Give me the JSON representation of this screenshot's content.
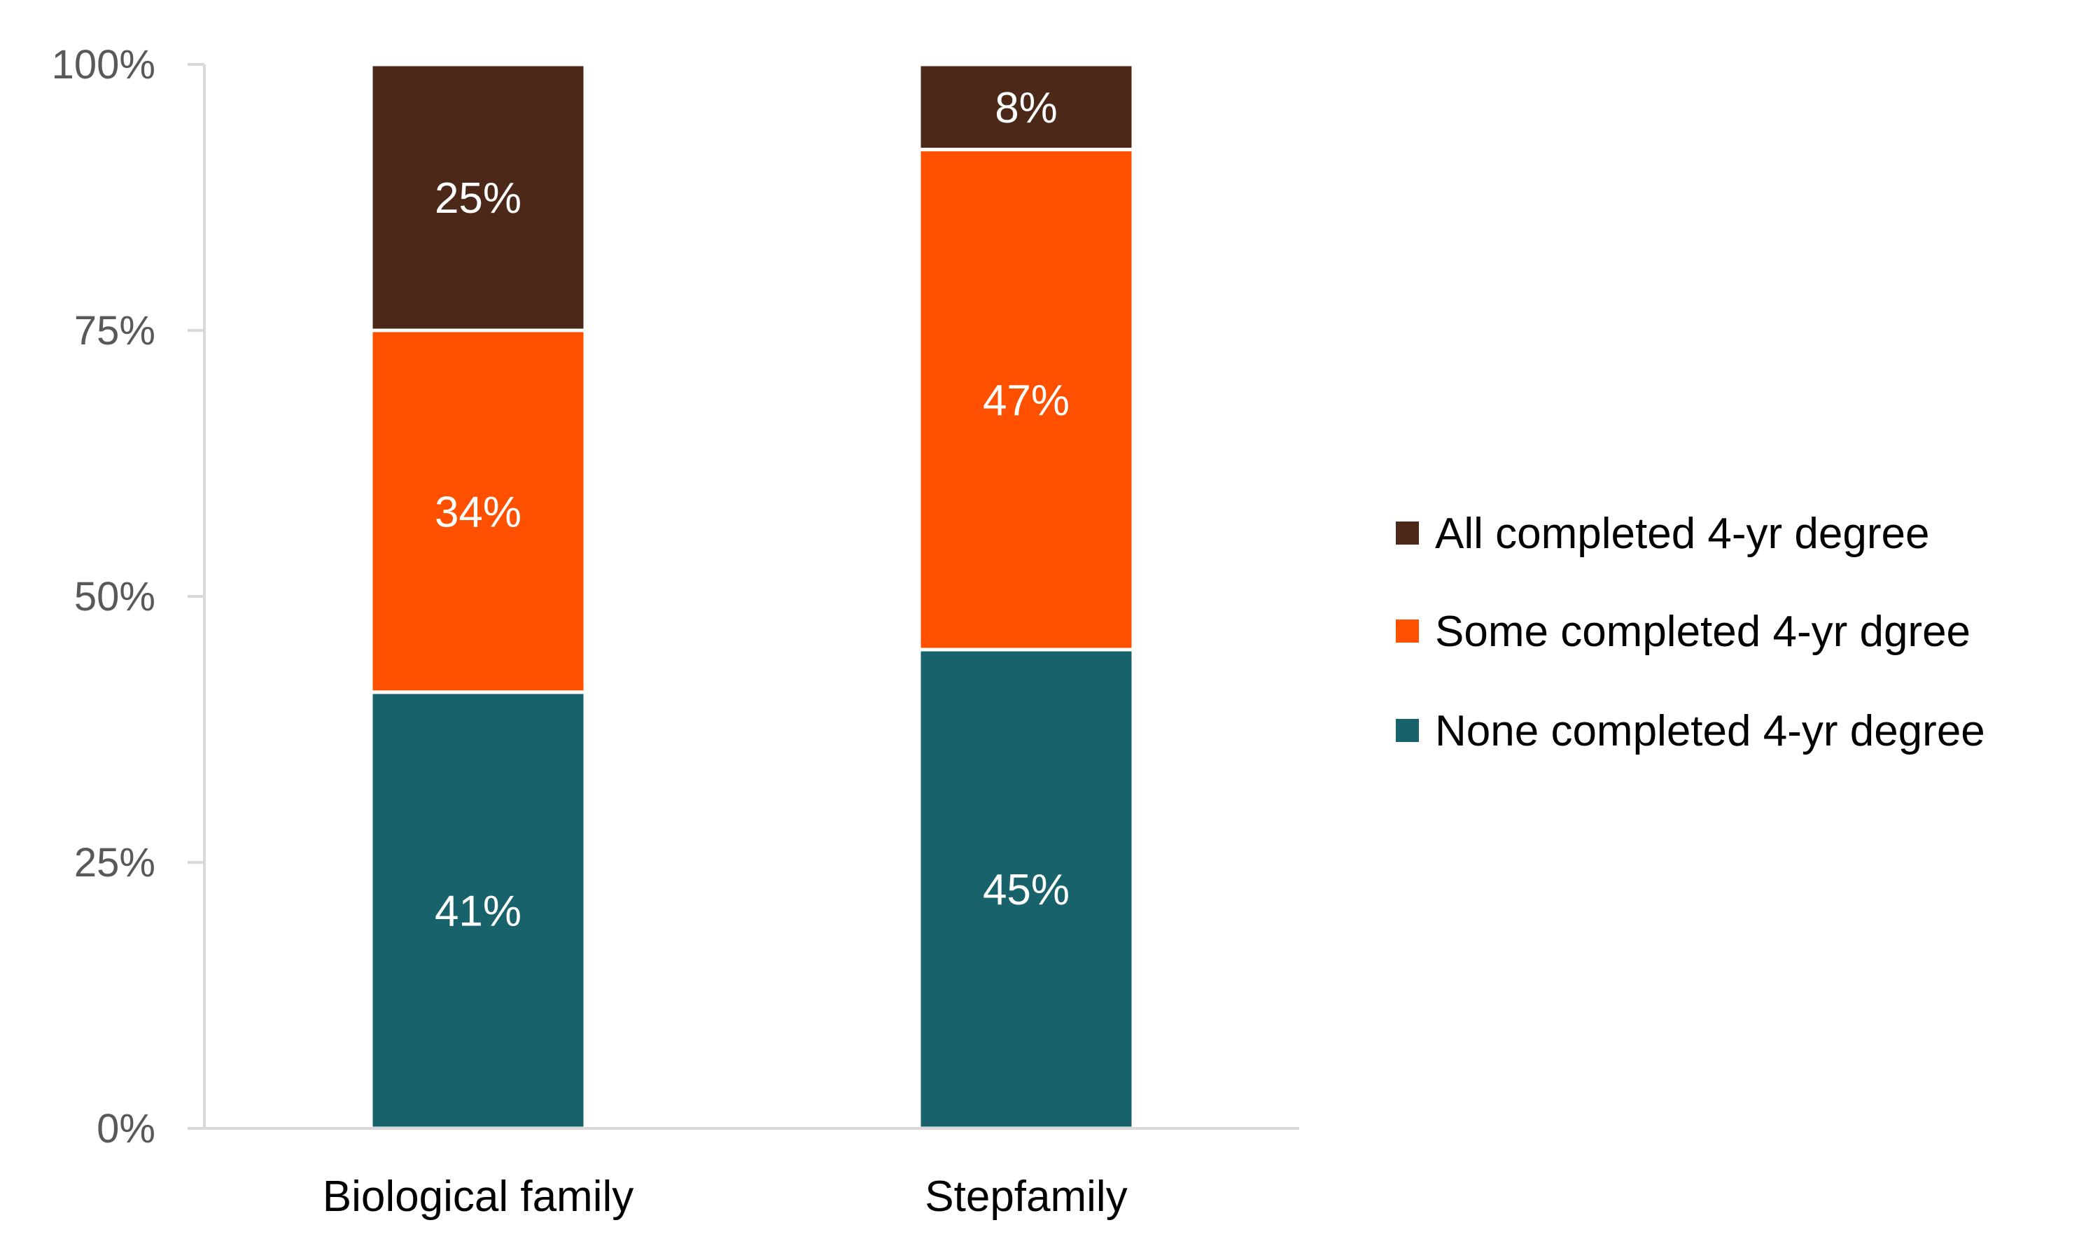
{
  "chart_data": {
    "type": "bar",
    "stacked": true,
    "title": "",
    "xlabel": "",
    "ylabel": "",
    "ylim": [
      0,
      100
    ],
    "yticks": [
      "0%",
      "25%",
      "50%",
      "75%",
      "100%"
    ],
    "ytick_values": [
      0,
      25,
      50,
      75,
      100
    ],
    "categories": [
      "Biological family",
      "Stepfamily"
    ],
    "series": [
      {
        "name": "None completed 4-yr degree",
        "values": [
          41,
          45
        ],
        "labels": [
          "41%",
          "45%"
        ],
        "color": "#18626B"
      },
      {
        "name": "Some completed 4-yr dgree",
        "values": [
          34,
          47
        ],
        "labels": [
          "34%",
          "47%"
        ],
        "color": "#FF5000"
      },
      {
        "name": "All completed 4-yr degree",
        "values": [
          25,
          8
        ],
        "labels": [
          "25%",
          "8%"
        ],
        "color": "#4B2818"
      }
    ],
    "legend": {
      "placement": "right",
      "order": [
        2,
        1,
        0
      ]
    },
    "grid": false
  }
}
